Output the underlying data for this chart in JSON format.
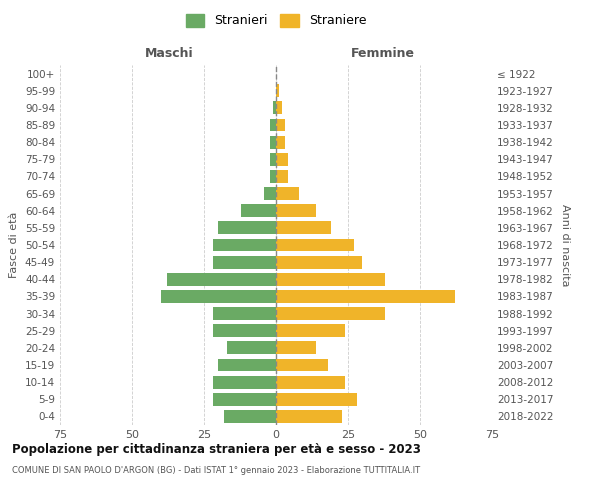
{
  "age_groups": [
    "0-4",
    "5-9",
    "10-14",
    "15-19",
    "20-24",
    "25-29",
    "30-34",
    "35-39",
    "40-44",
    "45-49",
    "50-54",
    "55-59",
    "60-64",
    "65-69",
    "70-74",
    "75-79",
    "80-84",
    "85-89",
    "90-94",
    "95-99",
    "100+"
  ],
  "birth_years": [
    "2018-2022",
    "2013-2017",
    "2008-2012",
    "2003-2007",
    "1998-2002",
    "1993-1997",
    "1988-1992",
    "1983-1987",
    "1978-1982",
    "1973-1977",
    "1968-1972",
    "1963-1967",
    "1958-1962",
    "1953-1957",
    "1948-1952",
    "1943-1947",
    "1938-1942",
    "1933-1937",
    "1928-1932",
    "1923-1927",
    "≤ 1922"
  ],
  "males": [
    18,
    22,
    22,
    20,
    17,
    22,
    22,
    40,
    38,
    22,
    22,
    20,
    12,
    4,
    2,
    2,
    2,
    2,
    1,
    0,
    0
  ],
  "females": [
    23,
    28,
    24,
    18,
    14,
    24,
    38,
    62,
    38,
    30,
    27,
    19,
    14,
    8,
    4,
    4,
    3,
    3,
    2,
    1,
    0
  ],
  "male_color": "#6aaa64",
  "female_color": "#f0b429",
  "background_color": "#ffffff",
  "grid_color": "#cccccc",
  "title": "Popolazione per cittadinanza straniera per età e sesso - 2023",
  "subtitle": "COMUNE DI SAN PAOLO D'ARGON (BG) - Dati ISTAT 1° gennaio 2023 - Elaborazione TUTTITALIA.IT",
  "xlabel_left": "Maschi",
  "xlabel_right": "Femmine",
  "ylabel_left": "Fasce di età",
  "ylabel_right": "Anni di nascita",
  "legend_male": "Stranieri",
  "legend_female": "Straniere",
  "xlim": 75
}
